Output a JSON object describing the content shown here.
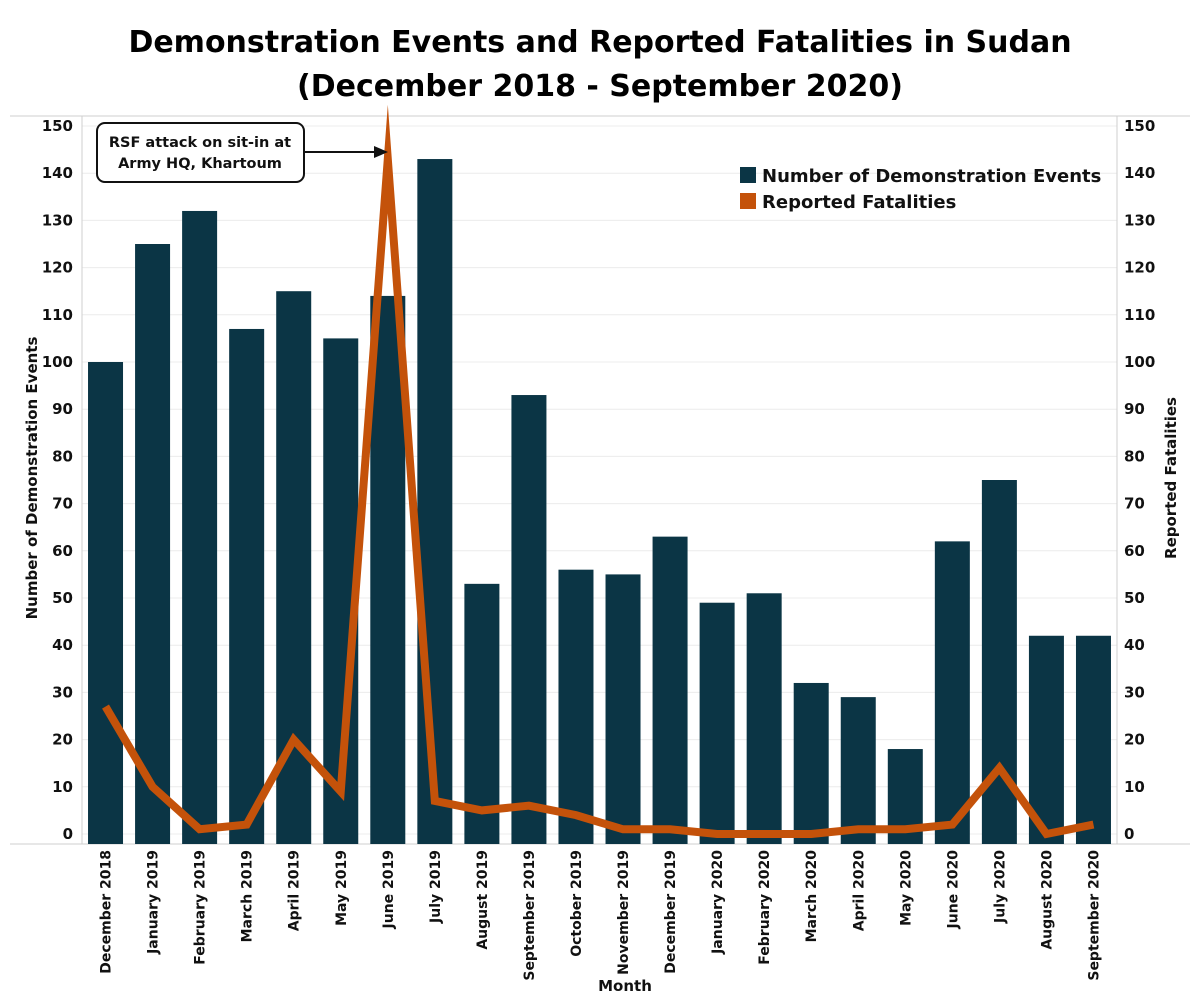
{
  "chart_data": {
    "type": "bar",
    "title": [
      "Demonstration Events and Reported Fatalities in Sudan",
      "(December 2018 - September 2020)"
    ],
    "xlabel": "Month",
    "ylabel_left": "Number of Demonstration Events",
    "ylabel_right": "Reported Fatalities",
    "ylim": [
      0,
      150
    ],
    "yticks": [
      0,
      10,
      20,
      30,
      40,
      50,
      60,
      70,
      80,
      90,
      100,
      110,
      120,
      130,
      140,
      150
    ],
    "grid": true,
    "legend_position": "top-right",
    "categories": [
      "December 2018",
      "January 2019",
      "February 2019",
      "March 2019",
      "April 2019",
      "May 2019",
      "June 2019",
      "July 2019",
      "August 2019",
      "September 2019",
      "October 2019",
      "November 2019",
      "December 2019",
      "January 2020",
      "February 2020",
      "March 2020",
      "April 2020",
      "May 2020",
      "June 2020",
      "July 2020",
      "August 2020",
      "September 2020"
    ],
    "series": [
      {
        "name": "Number of Demonstration Events",
        "type": "bar",
        "axis": "left",
        "color": "#0b3545",
        "values": [
          100,
          125,
          132,
          107,
          115,
          105,
          114,
          143,
          53,
          93,
          56,
          55,
          63,
          49,
          51,
          32,
          29,
          18,
          62,
          75,
          42,
          42
        ]
      },
      {
        "name": "Reported Fatalities",
        "type": "line",
        "axis": "right",
        "color": "#c4520a",
        "values": [
          27,
          10,
          1,
          2,
          20,
          9,
          143,
          7,
          5,
          6,
          4,
          1,
          1,
          0,
          0,
          0,
          1,
          1,
          2,
          14,
          0,
          2
        ]
      }
    ],
    "annotations": [
      {
        "text": [
          "RSF attack on sit-in at",
          "Army HQ, Khartoum"
        ],
        "target_category": "June 2019"
      }
    ]
  }
}
